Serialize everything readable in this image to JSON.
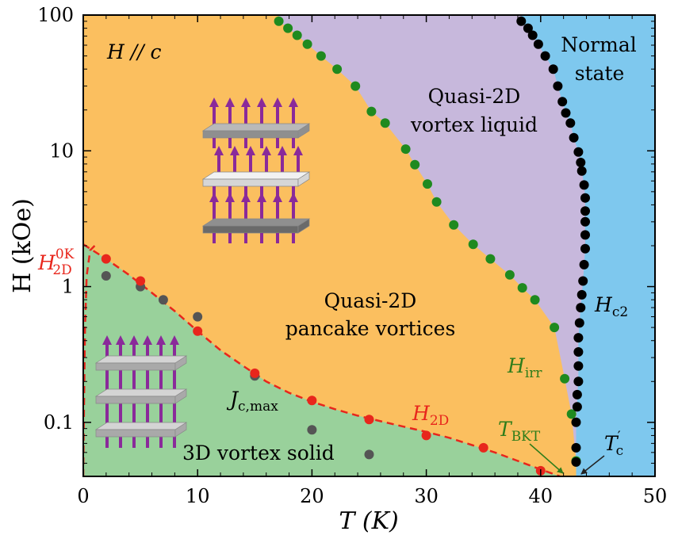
{
  "chart_data": {
    "type": "scatter",
    "xlabel": "T (K)",
    "ylabel": "H (kOe)",
    "xlim": [
      0,
      50
    ],
    "ylim": [
      0.04,
      100
    ],
    "y_scale": "log",
    "x_ticks": [
      "0",
      "10",
      "20",
      "30",
      "40",
      "50"
    ],
    "y_ticks": [
      "0.1",
      "1",
      "10",
      "100"
    ],
    "regions": [
      {
        "name": "3D vortex solid",
        "color": "#99d19b"
      },
      {
        "name": "Quasi-2D pancake vortices",
        "color": "#fbbf5f"
      },
      {
        "name": "Quasi-2D vortex liquid",
        "color": "#c7b8dc"
      },
      {
        "name": "Normal state",
        "color": "#7ec8ee"
      }
    ],
    "series": [
      {
        "name": "H_irr",
        "color": "#1f8a1f",
        "points": [
          [
            17.1,
            90
          ],
          [
            17.9,
            80
          ],
          [
            18.7,
            71
          ],
          [
            19.6,
            61
          ],
          [
            20.8,
            50
          ],
          [
            22.2,
            40
          ],
          [
            23.8,
            30
          ],
          [
            25.2,
            19.5
          ],
          [
            26.4,
            16
          ],
          [
            28.2,
            10.3
          ],
          [
            29.0,
            7.9
          ],
          [
            30.1,
            5.7
          ],
          [
            30.9,
            4.2
          ],
          [
            32.4,
            2.85
          ],
          [
            34.1,
            2.05
          ],
          [
            35.6,
            1.6
          ],
          [
            37.3,
            1.22
          ],
          [
            38.4,
            0.98
          ],
          [
            39.5,
            0.8
          ],
          [
            41.2,
            0.5
          ],
          [
            42.1,
            0.21
          ],
          [
            42.7,
            0.115
          ],
          [
            43.1,
            0.052
          ]
        ]
      },
      {
        "name": "H_c2",
        "color": "#000000",
        "points": [
          [
            38.3,
            90
          ],
          [
            38.9,
            80
          ],
          [
            39.3,
            71
          ],
          [
            39.8,
            61
          ],
          [
            40.4,
            50
          ],
          [
            41.1,
            40
          ],
          [
            41.5,
            30
          ],
          [
            41.9,
            23
          ],
          [
            42.2,
            19
          ],
          [
            42.6,
            16
          ],
          [
            42.9,
            12.5
          ],
          [
            43.3,
            9.8
          ],
          [
            43.5,
            8.2
          ],
          [
            43.6,
            7.1
          ],
          [
            43.8,
            5.6
          ],
          [
            43.9,
            4.5
          ],
          [
            43.9,
            3.6
          ],
          [
            43.9,
            3.0
          ],
          [
            43.9,
            2.4
          ],
          [
            43.9,
            1.9
          ],
          [
            43.8,
            1.45
          ],
          [
            43.7,
            1.1
          ],
          [
            43.6,
            0.87
          ],
          [
            43.5,
            0.7
          ],
          [
            43.4,
            0.54
          ],
          [
            43.3,
            0.42
          ],
          [
            43.3,
            0.33
          ],
          [
            43.3,
            0.26
          ],
          [
            43.3,
            0.2
          ],
          [
            43.2,
            0.16
          ],
          [
            43.2,
            0.13
          ],
          [
            43.1,
            0.1
          ],
          [
            43.1,
            0.065
          ],
          [
            43.1,
            0.051
          ]
        ]
      },
      {
        "name": "H_2D",
        "color": "#e8261c",
        "points": [
          [
            2,
            1.6
          ],
          [
            5,
            1.1
          ],
          [
            10,
            0.47
          ],
          [
            15,
            0.23
          ],
          [
            20,
            0.145
          ],
          [
            25,
            0.105
          ],
          [
            30,
            0.08
          ],
          [
            35,
            0.065
          ],
          [
            40,
            0.044
          ]
        ]
      },
      {
        "name": "J_c,max",
        "color": "#555555",
        "points": [
          [
            2,
            1.2
          ],
          [
            5,
            1.0
          ],
          [
            7,
            0.8
          ],
          [
            10,
            0.6
          ],
          [
            15,
            0.22
          ],
          [
            20,
            0.088
          ],
          [
            25,
            0.058
          ]
        ]
      }
    ],
    "h2d_fit_curve": [
      [
        0,
        2.05
      ],
      [
        2,
        1.6
      ],
      [
        4,
        1.22
      ],
      [
        6,
        0.9
      ],
      [
        8,
        0.66
      ],
      [
        10,
        0.47
      ],
      [
        12,
        0.34
      ],
      [
        14,
        0.26
      ],
      [
        16,
        0.2
      ],
      [
        18,
        0.165
      ],
      [
        20,
        0.142
      ],
      [
        22,
        0.125
      ],
      [
        24,
        0.112
      ],
      [
        26,
        0.102
      ],
      [
        28,
        0.093
      ],
      [
        30,
        0.085
      ],
      [
        32,
        0.077
      ],
      [
        34,
        0.068
      ],
      [
        36,
        0.06
      ],
      [
        38,
        0.052
      ],
      [
        40,
        0.045
      ],
      [
        41.7,
        0.04
      ]
    ],
    "h2d_low_T_curve": [
      [
        0,
        0.04
      ],
      [
        0.05,
        0.1
      ],
      [
        0.15,
        0.5
      ],
      [
        0.3,
        1.2
      ],
      [
        0.6,
        1.85
      ],
      [
        1,
        2.0
      ]
    ]
  },
  "labels": {
    "h_parallel_c": "H // c",
    "normal_state_line1": "Normal",
    "normal_state_line2": "state",
    "vortex_liquid_line1": "Quasi-2D",
    "vortex_liquid_line2": "vortex liquid",
    "pancake_line1": "Quasi-2D",
    "pancake_line2": "pancake vortices",
    "vortex_solid": "3D vortex solid",
    "hc2_main": "H",
    "hc2_sub": "c2",
    "hirr_main": "H",
    "hirr_sub": "irr",
    "h2d_main": "H",
    "h2d_sub": "2D",
    "h2d0k_main": "H",
    "h2d0k_sup": "0K",
    "h2d0k_sub": "2D",
    "jc_main": "J",
    "jc_sub": "c,max",
    "tbkt_main": "T",
    "tbkt_sub": "BKT",
    "tc_main": "T",
    "tc_sup": "′",
    "tc_sub": "c"
  }
}
